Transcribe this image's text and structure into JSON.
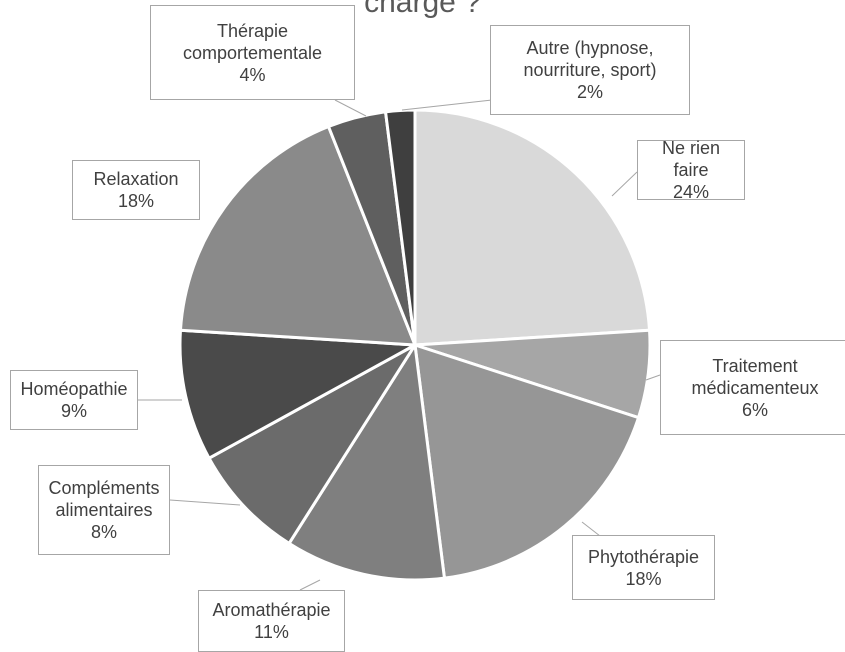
{
  "chart_data": {
    "type": "pie",
    "title": "charge ?",
    "categories": [
      "Ne rien faire",
      "Traitement médicamenteux",
      "Phytothérapie",
      "Aromathérapie",
      "Compléments alimentaires",
      "Homéopathie",
      "Relaxation",
      "Thérapie comportementale",
      "Autre (hypnose, nourriture, sport)"
    ],
    "values": [
      24,
      6,
      18,
      11,
      8,
      9,
      18,
      4,
      2
    ],
    "value_labels": [
      "24%",
      "6%",
      "18%",
      "11%",
      "8%",
      "9%",
      "18%",
      "4%",
      "2%"
    ],
    "colors": [
      "#d9d9d9",
      "#a6a6a6",
      "#969696",
      "#7f7f7f",
      "#6b6b6b",
      "#4a4a4a",
      "#8a8a8a",
      "#5f5f5f",
      "#3f3f3f"
    ]
  }
}
